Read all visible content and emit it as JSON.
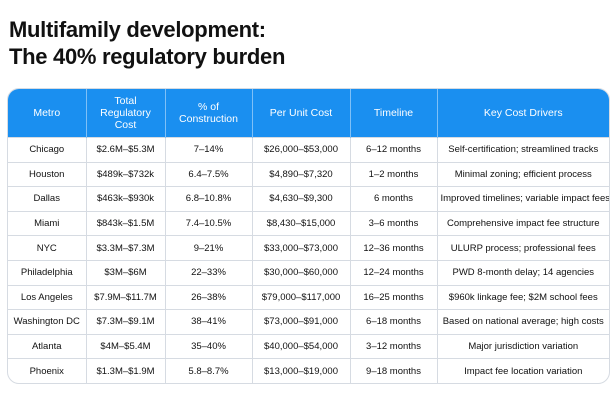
{
  "header": {
    "title": [
      "Multifamily development:",
      "The 40% regulatory burden"
    ]
  },
  "table": {
    "headers": [
      "Metro",
      "Total Regulatory Cost",
      "% of Construction",
      "Per Unit Cost",
      "Timeline",
      "Key Cost Drivers"
    ],
    "rows": [
      [
        "Chicago",
        "$2.6M–$5.3M",
        "7–14%",
        "$26,000–$53,000",
        "6–12 months",
        "Self-certification; streamlined tracks"
      ],
      [
        "Houston",
        "$489k–$732k",
        "6.4–7.5%",
        "$4,890–$7,320",
        "1–2 months",
        "Minimal zoning; efficient process"
      ],
      [
        "Dallas",
        "$463k–$930k",
        "6.8–10.8%",
        "$4,630–$9,300",
        "6 months",
        "Improved timelines; variable impact fees"
      ],
      [
        "Miami",
        "$843k–$1.5M",
        "7.4–10.5%",
        "$8,430–$15,000",
        "3–6 months",
        "Comprehensive impact fee structure"
      ],
      [
        "NYC",
        "$3.3M–$7.3M",
        "9–21%",
        "$33,000–$73,000",
        "12–36 months",
        "ULURP process; professional fees"
      ],
      [
        "Philadelphia",
        "$3M–$6M",
        "22–33%",
        "$30,000–$60,000",
        "12–24 months",
        "PWD 8-month delay; 14 agencies"
      ],
      [
        "Los Angeles",
        "$7.9M–$11.7M",
        "26–38%",
        "$79,000–$117,000",
        "16–25 months",
        "$960k linkage fee; $2M school fees"
      ],
      [
        "Washington DC",
        "$7.3M–$9.1M",
        "38–41%",
        "$73,000–$91,000",
        "6–18 months",
        "Based on national average; high costs"
      ],
      [
        "Atlanta",
        "$4M–$5.4M",
        "35–40%",
        "$40,000–$54,000",
        "3–12 months",
        "Major jurisdiction variation"
      ],
      [
        "Phoenix",
        "$1.3M–$1.9M",
        "5.8–8.7%",
        "$13,000–$19,000",
        "9–18 months",
        "Impact fee location variation"
      ]
    ]
  }
}
